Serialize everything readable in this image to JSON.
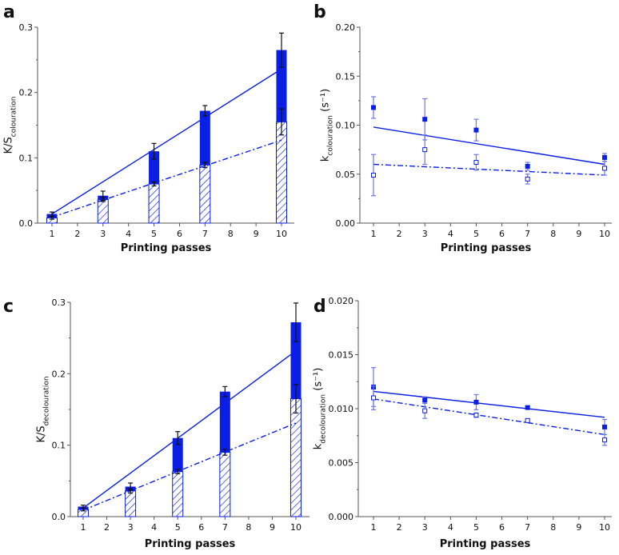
{
  "chart_data": [
    {
      "panel": "a",
      "type": "bar",
      "title": "",
      "xlabel": "Printing passes",
      "ylabel": "K/S",
      "ylabel_sub": "colouration",
      "xlim": [
        0.5,
        10.5
      ],
      "ylim": [
        0,
        0.3
      ],
      "xticks": [
        "1",
        "2",
        "3",
        "4",
        "5",
        "6",
        "7",
        "8",
        "9",
        "10"
      ],
      "yticks": [
        "0.0",
        "0.1",
        "0.2",
        "0.3"
      ],
      "ytick_values": [
        0,
        0.1,
        0.2,
        0.3
      ],
      "x": [
        1,
        3,
        5,
        7,
        10
      ],
      "series": [
        {
          "name": "solid",
          "style": "filled",
          "values": [
            0.014,
            0.042,
            0.11,
            0.172,
            0.265
          ],
          "errors": [
            0.003,
            0.007,
            0.012,
            0.008,
            0.026
          ]
        },
        {
          "name": "hatched",
          "style": "hatched",
          "values": [
            0.008,
            0.036,
            0.06,
            0.089,
            0.155
          ],
          "errors": [
            0.002,
            0.003,
            0.003,
            0.004,
            0.02
          ]
        }
      ],
      "fits": [
        {
          "style": "solid",
          "y": [
            0.014,
            0.236
          ]
        },
        {
          "style": "dashdot",
          "y": [
            0.009,
            0.127
          ]
        }
      ]
    },
    {
      "panel": "b",
      "type": "scatter",
      "xlabel": "Printing passes",
      "ylabel": "k",
      "ylabel_sub": "colouration",
      "ylabel_unit": " (s⁻¹)",
      "xlim": [
        0.5,
        10.5
      ],
      "ylim": [
        0,
        0.2
      ],
      "xticks": [
        "1",
        "2",
        "3",
        "4",
        "5",
        "6",
        "7",
        "8",
        "9",
        "10"
      ],
      "yticks": [
        "0.00",
        "0.05",
        "0.10",
        "0.15",
        "0.20"
      ],
      "ytick_values": [
        0,
        0.05,
        0.1,
        0.15,
        0.2
      ],
      "x": [
        1,
        3,
        5,
        7,
        10
      ],
      "series": [
        {
          "name": "filled",
          "style": "filled",
          "values": [
            0.118,
            0.106,
            0.095,
            0.058,
            0.067
          ],
          "errors": [
            0.011,
            0.021,
            0.011,
            0.004,
            0.004
          ]
        },
        {
          "name": "open",
          "style": "open",
          "values": [
            0.049,
            0.075,
            0.062,
            0.045,
            0.056
          ],
          "errors": [
            0.021,
            0.015,
            0.008,
            0.005,
            0.007
          ]
        }
      ],
      "fits": [
        {
          "style": "solid",
          "y": [
            0.098,
            0.06
          ]
        },
        {
          "style": "dashdot",
          "y": [
            0.06,
            0.049
          ]
        }
      ]
    },
    {
      "panel": "c",
      "type": "bar",
      "xlabel": "Printing passes",
      "ylabel": "K/S",
      "ylabel_sub": "decolouration",
      "xlim": [
        0.5,
        10.5
      ],
      "ylim": [
        0,
        0.3
      ],
      "xticks": [
        "1",
        "2",
        "3",
        "4",
        "5",
        "6",
        "7",
        "8",
        "9",
        "10"
      ],
      "yticks": [
        "0.0",
        "0.1",
        "0.2",
        "0.3"
      ],
      "ytick_values": [
        0,
        0.1,
        0.2,
        0.3
      ],
      "x": [
        1,
        3,
        5,
        7,
        10
      ],
      "series": [
        {
          "name": "solid",
          "style": "filled",
          "values": [
            0.014,
            0.042,
            0.11,
            0.175,
            0.272
          ],
          "errors": [
            0.002,
            0.005,
            0.009,
            0.007,
            0.027
          ]
        },
        {
          "name": "hatched",
          "style": "hatched",
          "values": [
            0.01,
            0.036,
            0.063,
            0.09,
            0.165
          ],
          "errors": [
            0.002,
            0.003,
            0.003,
            0.004,
            0.02
          ]
        }
      ],
      "fits": [
        {
          "style": "solid",
          "y": [
            0.012,
            0.232
          ]
        },
        {
          "style": "dashdot",
          "y": [
            0.009,
            0.131
          ]
        }
      ]
    },
    {
      "panel": "d",
      "type": "scatter",
      "xlabel": "Printing passes",
      "ylabel": "k",
      "ylabel_sub": "decolouration",
      "ylabel_unit": " (s⁻¹)",
      "xlim": [
        0.5,
        10.5
      ],
      "ylim": [
        0,
        0.02
      ],
      "xticks": [
        "1",
        "2",
        "3",
        "4",
        "5",
        "6",
        "7",
        "8",
        "9",
        "10"
      ],
      "yticks": [
        "0.000",
        "0.005",
        "0.010",
        "0.015",
        "0.020"
      ],
      "ytick_values": [
        0,
        0.005,
        0.01,
        0.015,
        0.02
      ],
      "x": [
        1,
        3,
        5,
        7,
        10
      ],
      "series": [
        {
          "name": "filled",
          "style": "filled",
          "values": [
            0.012,
            0.0108,
            0.0106,
            0.0101,
            0.0083
          ],
          "errors": [
            0.0018,
            0.0003,
            0.0007,
            0.0001,
            0.0007
          ]
        },
        {
          "name": "open",
          "style": "open",
          "values": [
            0.011,
            0.0098,
            0.0094,
            0.0089,
            0.0071
          ],
          "errors": [
            0.0011,
            0.0007,
            0.0002,
            0.0001,
            0.0005
          ]
        }
      ],
      "fits": [
        {
          "style": "solid",
          "y": [
            0.0116,
            0.0092
          ]
        },
        {
          "style": "dashdot",
          "y": [
            0.0109,
            0.0076
          ]
        }
      ]
    }
  ],
  "colors": {
    "blue": "#0a1ee6",
    "light_blue": "#6a78e8",
    "error": "#111111",
    "axis": "#555555"
  }
}
